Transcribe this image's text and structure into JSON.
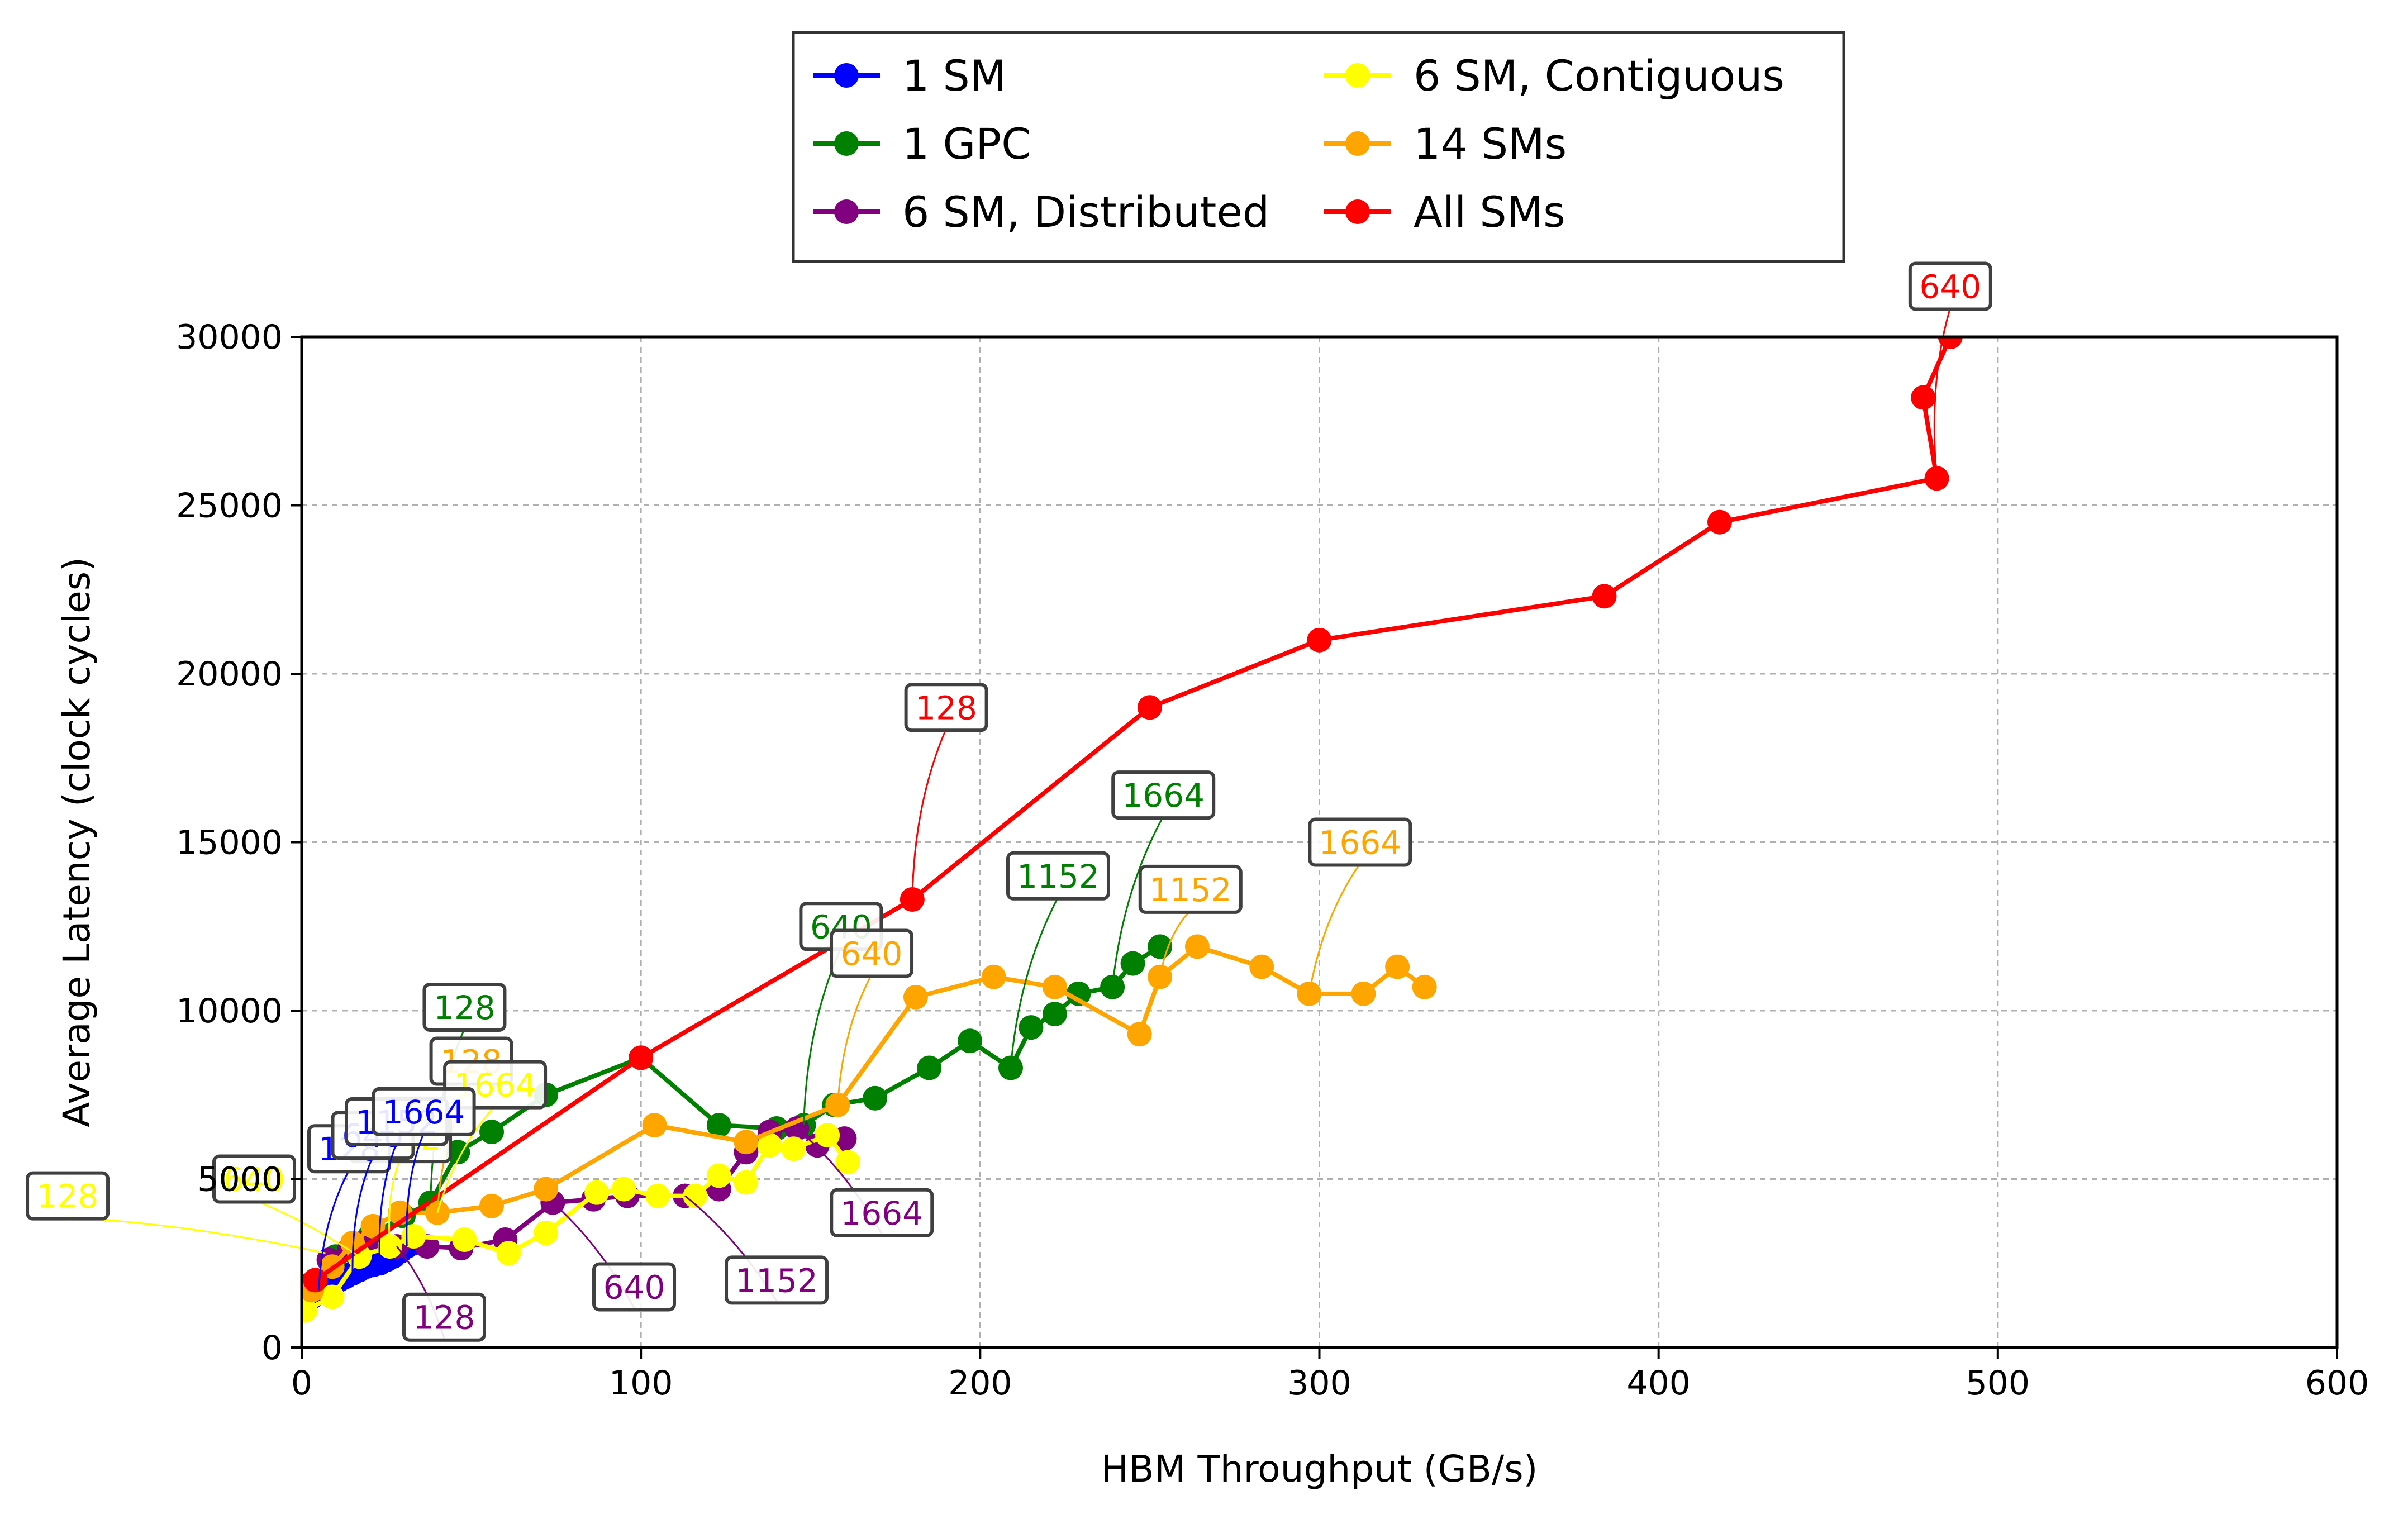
{
  "chart_data": {
    "type": "line",
    "title": "",
    "xlabel": "HBM Throughput (GB/s)",
    "ylabel": "Average Latency (clock cycles)",
    "xlim": [
      0,
      600
    ],
    "ylim": [
      0,
      30000
    ],
    "xticks": [
      0,
      100,
      200,
      300,
      400,
      500,
      600
    ],
    "yticks": [
      0,
      5000,
      10000,
      15000,
      20000,
      25000,
      30000
    ],
    "xtick_labels": [
      "0",
      "100",
      "200",
      "300",
      "400",
      "500",
      "600"
    ],
    "ytick_labels": [
      "0",
      "5000",
      "10000",
      "15000",
      "20000",
      "25000",
      "30000"
    ],
    "grid": true,
    "legend_position": "top-center, outside above plot",
    "series": [
      {
        "name": "1 SM",
        "color": "#0000ff",
        "points": [
          [
            1,
            1200
          ],
          [
            3,
            1500
          ],
          [
            5,
            1700
          ],
          [
            7,
            1800
          ],
          [
            9,
            1900
          ],
          [
            11,
            2000
          ],
          [
            13,
            2100
          ],
          [
            15,
            2200
          ],
          [
            17,
            2300
          ],
          [
            19,
            2400
          ],
          [
            21,
            2450
          ],
          [
            23,
            2500
          ],
          [
            25,
            2600
          ],
          [
            27,
            2700
          ],
          [
            29,
            2850
          ],
          [
            31,
            3000
          ],
          [
            33,
            3100
          ]
        ]
      },
      {
        "name": "1 GPC",
        "color": "#008000",
        "points": [
          [
            2,
            1700
          ],
          [
            10,
            2700
          ],
          [
            20,
            3300
          ],
          [
            30,
            3900
          ],
          [
            38,
            4300
          ],
          [
            46,
            5800
          ],
          [
            56,
            6400
          ],
          [
            72,
            7500
          ],
          [
            100,
            8600
          ],
          [
            123,
            6600
          ],
          [
            140,
            6500
          ],
          [
            148,
            6600
          ],
          [
            157,
            7200
          ],
          [
            169,
            7400
          ],
          [
            185,
            8300
          ],
          [
            197,
            9100
          ],
          [
            209,
            8300
          ],
          [
            215,
            9500
          ],
          [
            222,
            9900
          ],
          [
            229,
            10500
          ],
          [
            239,
            10700
          ],
          [
            245,
            11400
          ],
          [
            253,
            11900
          ]
        ]
      },
      {
        "name": "6 SM, Distributed",
        "color": "#800080",
        "points": [
          [
            3,
            1900
          ],
          [
            8,
            2600
          ],
          [
            14,
            2900
          ],
          [
            20,
            3200
          ],
          [
            28,
            3000
          ],
          [
            37,
            3000
          ],
          [
            47,
            2950
          ],
          [
            60,
            3200
          ],
          [
            74,
            4300
          ],
          [
            86,
            4400
          ],
          [
            96,
            4500
          ],
          [
            113,
            4500
          ],
          [
            123,
            4700
          ],
          [
            131,
            5800
          ],
          [
            138,
            6400
          ],
          [
            146,
            6500
          ],
          [
            152,
            6000
          ],
          [
            160,
            6200
          ]
        ]
      },
      {
        "name": "6 SM, Contiguous",
        "color": "#ffff00",
        "points": [
          [
            1,
            1100
          ],
          [
            9,
            1500
          ],
          [
            17,
            2700
          ],
          [
            26,
            3000
          ],
          [
            33,
            3300
          ],
          [
            48,
            3200
          ],
          [
            61,
            2800
          ],
          [
            72,
            3400
          ],
          [
            87,
            4600
          ],
          [
            95,
            4700
          ],
          [
            105,
            4500
          ],
          [
            116,
            4500
          ],
          [
            123,
            5100
          ],
          [
            131,
            4900
          ],
          [
            138,
            6000
          ],
          [
            145,
            5900
          ],
          [
            155,
            6300
          ],
          [
            161,
            5500
          ]
        ]
      },
      {
        "name": "14 SMs",
        "color": "#ffa500",
        "points": [
          [
            3,
            1700
          ],
          [
            9,
            2400
          ],
          [
            15,
            3100
          ],
          [
            21,
            3600
          ],
          [
            29,
            4000
          ],
          [
            40,
            4000
          ],
          [
            56,
            4200
          ],
          [
            72,
            4700
          ],
          [
            104,
            6600
          ],
          [
            131,
            6100
          ],
          [
            158,
            7200
          ],
          [
            181,
            10400
          ],
          [
            204,
            11000
          ],
          [
            222,
            10700
          ],
          [
            247,
            9300
          ],
          [
            253,
            11000
          ],
          [
            264,
            11900
          ],
          [
            283,
            11300
          ],
          [
            297,
            10500
          ],
          [
            313,
            10500
          ],
          [
            323,
            11300
          ],
          [
            331,
            10700
          ]
        ]
      },
      {
        "name": "All SMs",
        "color": "#ff0000",
        "points": [
          [
            4,
            2000
          ],
          [
            100,
            8600
          ],
          [
            180,
            13300
          ],
          [
            250,
            19000
          ],
          [
            300,
            21000
          ],
          [
            384,
            22300
          ],
          [
            418,
            24500
          ],
          [
            482,
            25800
          ],
          [
            478,
            28200
          ],
          [
            486,
            30000
          ]
        ]
      }
    ],
    "annotations": [
      {
        "text": "128",
        "series": "All SMs",
        "color": "#ff0000",
        "point": [
          180,
          13300
        ],
        "label_at": [
          190,
          19000
        ]
      },
      {
        "text": "640",
        "series": "All SMs",
        "color": "#ff0000",
        "point": [
          482,
          25800
        ],
        "label_at": [
          486,
          31500
        ]
      },
      {
        "text": "128",
        "series": "1 GPC",
        "color": "#008000",
        "point": [
          38,
          4300
        ],
        "label_at": [
          48,
          10100
        ]
      },
      {
        "text": "640",
        "series": "1 GPC",
        "color": "#008000",
        "point": [
          148,
          6600
        ],
        "label_at": [
          159,
          12500
        ]
      },
      {
        "text": "1152",
        "series": "1 GPC",
        "color": "#008000",
        "point": [
          209,
          8300
        ],
        "label_at": [
          223,
          14000
        ]
      },
      {
        "text": "1664",
        "series": "1 GPC",
        "color": "#008000",
        "point": [
          239,
          10700
        ],
        "label_at": [
          254,
          16400
        ]
      },
      {
        "text": "128",
        "series": "14 SMs",
        "color": "#ffa500",
        "point": [
          40,
          4000
        ],
        "label_at": [
          50,
          8500
        ]
      },
      {
        "text": "640",
        "series": "14 SMs",
        "color": "#ffa500",
        "point": [
          158,
          7200
        ],
        "label_at": [
          168,
          11700
        ]
      },
      {
        "text": "1152",
        "series": "14 SMs",
        "color": "#ffa500",
        "point": [
          253,
          11000
        ],
        "label_at": [
          262,
          13600
        ]
      },
      {
        "text": "1664",
        "series": "14 SMs",
        "color": "#ffa500",
        "point": [
          297,
          10500
        ],
        "label_at": [
          312,
          15000
        ]
      },
      {
        "text": "128",
        "series": "6 SM, Distributed",
        "color": "#800080",
        "point": [
          28,
          3000
        ],
        "label_at": [
          42,
          900
        ]
      },
      {
        "text": "640",
        "series": "6 SM, Distributed",
        "color": "#800080",
        "point": [
          74,
          4300
        ],
        "label_at": [
          98,
          1800
        ]
      },
      {
        "text": "1152",
        "series": "6 SM, Distributed",
        "color": "#800080",
        "point": [
          113,
          4500
        ],
        "label_at": [
          140,
          2000
        ]
      },
      {
        "text": "1664",
        "series": "6 SM, Distributed",
        "color": "#800080",
        "point": [
          146,
          6500
        ],
        "label_at": [
          171,
          4000
        ]
      },
      {
        "text": "128",
        "series": "6 SM, Contiguous",
        "color": "#ffff00",
        "point": [
          7,
          2800
        ],
        "label_at": [
          -69,
          4500
        ]
      },
      {
        "text": "640",
        "series": "6 SM, Contiguous",
        "color": "#ffff00",
        "point": [
          17,
          2700
        ],
        "label_at": [
          -14,
          5000
        ]
      },
      {
        "text": "1152",
        "series": "6 SM, Contiguous",
        "color": "#ffff00",
        "point": [
          26,
          3000
        ],
        "label_at": [
          29,
          6200
        ]
      },
      {
        "text": "1664",
        "series": "6 SM, Contiguous",
        "color": "#ffff00",
        "point": [
          40,
          4000
        ],
        "label_at": [
          57,
          7800
        ]
      },
      {
        "text": "128",
        "series": "1 SM",
        "color": "#0000ff",
        "point": [
          5,
          1700
        ],
        "label_at": [
          14,
          5900
        ]
      },
      {
        "text": "640",
        "series": "1 SM",
        "color": "#0000ff",
        "point": [
          15,
          2200
        ],
        "label_at": [
          21,
          6300
        ]
      },
      {
        "text": "1152",
        "series": "1 SM",
        "color": "#0000ff",
        "point": [
          23,
          2500
        ],
        "label_at": [
          28,
          6700
        ]
      },
      {
        "text": "1664",
        "series": "1 SM",
        "color": "#0000ff",
        "point": [
          31,
          3000
        ],
        "label_at": [
          36,
          7000
        ]
      }
    ]
  }
}
